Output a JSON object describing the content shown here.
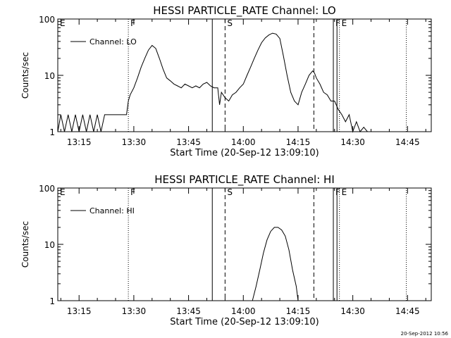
{
  "footer": {
    "timestamp": "20-Sep-2012 10:56"
  },
  "chart_data": [
    {
      "type": "line",
      "title": "HESSI PARTICLE_RATE Channel: LO",
      "xlabel": "Start Time (20-Sep-12 13:09:10)",
      "ylabel": "Counts/sec",
      "yscale": "log",
      "ylim": [
        1,
        100
      ],
      "xlim": [
        "13:09:10",
        "14:51:30"
      ],
      "x_ticks": [
        "13:15",
        "13:30",
        "13:45",
        "14:00",
        "14:15",
        "14:30",
        "14:45"
      ],
      "y_ticks": [
        "1",
        "10",
        "100"
      ],
      "grid": false,
      "legend": "top-left",
      "series": [
        {
          "name": "Channel: LO",
          "color": "#000000",
          "x": [
            "13:09:10",
            "13:10:00",
            "13:11:00",
            "13:12:00",
            "13:13:00",
            "13:14:00",
            "13:15:00",
            "13:16:00",
            "13:17:00",
            "13:18:00",
            "13:19:00",
            "13:20:00",
            "13:21:00",
            "13:22:00",
            "13:23:00",
            "13:24:00",
            "13:25:00",
            "13:26:00",
            "13:27:00",
            "13:28:00",
            "13:28:30",
            "13:29:00",
            "13:30:00",
            "13:31:00",
            "13:32:00",
            "13:33:00",
            "13:34:00",
            "13:35:00",
            "13:36:00",
            "13:37:00",
            "13:38:00",
            "13:39:00",
            "13:40:00",
            "13:41:00",
            "13:42:00",
            "13:43:00",
            "13:44:00",
            "13:45:00",
            "13:46:00",
            "13:47:00",
            "13:48:00",
            "13:49:00",
            "13:50:00",
            "13:51:00",
            "13:52:00",
            "13:53:00",
            "13:53:30",
            "13:54:00",
            "13:55:00",
            "13:56:00",
            "13:57:00",
            "13:58:00",
            "13:59:00",
            "14:00:00",
            "14:01:00",
            "14:02:00",
            "14:03:00",
            "14:04:00",
            "14:05:00",
            "14:06:00",
            "14:07:00",
            "14:08:00",
            "14:09:00",
            "14:10:00",
            "14:11:00",
            "14:12:00",
            "14:13:00",
            "14:14:00",
            "14:15:00",
            "14:16:00",
            "14:17:00",
            "14:18:00",
            "14:19:00",
            "14:19:30",
            "14:20:00",
            "14:21:00",
            "14:22:00",
            "14:23:00",
            "14:24:00",
            "14:25:00",
            "14:26:00",
            "14:27:00",
            "14:28:00",
            "14:29:00",
            "14:30:00",
            "14:31:00",
            "14:32:00",
            "14:33:00",
            "14:34:00",
            "14:35:00",
            "14:36:00",
            "14:37:00"
          ],
          "values": [
            1,
            2,
            1,
            2,
            1,
            2,
            1,
            2,
            1,
            2,
            1,
            2,
            1,
            2,
            2,
            2,
            2,
            2,
            2,
            2,
            3.5,
            4.5,
            6,
            9,
            14,
            20,
            28,
            34,
            30,
            20,
            13,
            9,
            8,
            7,
            6.5,
            6,
            7,
            6.5,
            6,
            6.5,
            6,
            7,
            7.5,
            6.5,
            6,
            6,
            3,
            5,
            4,
            3.5,
            4.5,
            5,
            6,
            7,
            10,
            14,
            20,
            28,
            38,
            46,
            52,
            56,
            54,
            45,
            22,
            10,
            5,
            3.5,
            3,
            5,
            7,
            10,
            12,
            11,
            9,
            7,
            5,
            4.5,
            3.5,
            3.5,
            2.5,
            2,
            1.5,
            2,
            1,
            1.5,
            1,
            1.2,
            1,
            1,
            1,
            1
          ]
        }
      ],
      "markers": [
        {
          "label": "E",
          "x": "13:09:10",
          "style": "dotted"
        },
        {
          "label": "F",
          "x": "13:28:30",
          "style": "dotted"
        },
        {
          "label": "",
          "x": "13:51:30",
          "style": "solid"
        },
        {
          "label": "S",
          "x": "13:55:00",
          "style": "dashed"
        },
        {
          "label": "",
          "x": "14:19:20",
          "style": "dashed"
        },
        {
          "label": "F",
          "x": "14:24:40",
          "style": "solid"
        },
        {
          "label": "",
          "x": "14:25:40",
          "style": "solid"
        },
        {
          "label": "E",
          "x": "14:26:20",
          "style": "dotted"
        },
        {
          "label": "",
          "x": "14:44:40",
          "style": "dotted"
        }
      ]
    },
    {
      "type": "line",
      "title": "HESSI PARTICLE_RATE Channel: HI",
      "xlabel": "Start Time (20-Sep-12 13:09:10)",
      "ylabel": "Counts/sec",
      "yscale": "log",
      "ylim": [
        1,
        100
      ],
      "xlim": [
        "13:09:10",
        "14:51:30"
      ],
      "x_ticks": [
        "13:15",
        "13:30",
        "13:45",
        "14:00",
        "14:15",
        "14:30",
        "14:45"
      ],
      "y_ticks": [
        "1",
        "10",
        "100"
      ],
      "grid": false,
      "legend": "top-left",
      "series": [
        {
          "name": "Channel: HI",
          "color": "#000000",
          "x": [
            "14:02:30",
            "14:03:30",
            "14:04:30",
            "14:05:30",
            "14:06:30",
            "14:07:30",
            "14:08:30",
            "14:09:30",
            "14:10:30",
            "14:11:30",
            "14:12:30",
            "14:13:30",
            "14:14:30",
            "14:15:00"
          ],
          "values": [
            1,
            1.8,
            3.5,
            7,
            12,
            17,
            20,
            20,
            18,
            14,
            8,
            3.5,
            1.8,
            1
          ]
        }
      ],
      "markers": [
        {
          "label": "E",
          "x": "13:09:10",
          "style": "dotted"
        },
        {
          "label": "F",
          "x": "13:28:30",
          "style": "dotted"
        },
        {
          "label": "",
          "x": "13:51:30",
          "style": "solid"
        },
        {
          "label": "S",
          "x": "13:55:00",
          "style": "dashed"
        },
        {
          "label": "",
          "x": "14:19:20",
          "style": "dashed"
        },
        {
          "label": "F",
          "x": "14:24:40",
          "style": "solid"
        },
        {
          "label": "",
          "x": "14:25:40",
          "style": "solid"
        },
        {
          "label": "E",
          "x": "14:26:20",
          "style": "dotted"
        },
        {
          "label": "",
          "x": "14:44:40",
          "style": "dotted"
        }
      ]
    }
  ]
}
